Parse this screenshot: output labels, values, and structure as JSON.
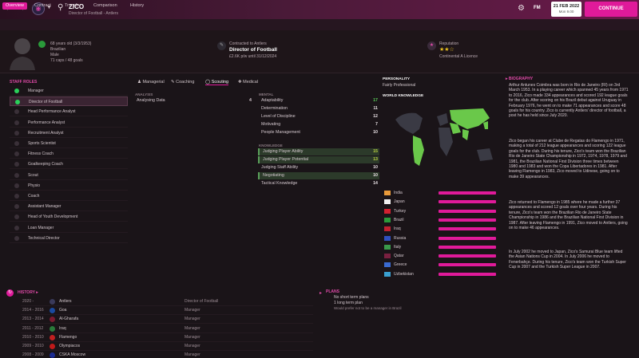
{
  "topbar": {
    "name": "ZICO",
    "subtitle": "Director of Football - Antlers",
    "fm": "FM",
    "date": "21 FEB 2022",
    "time": "Mon 9.00",
    "continue": "CONTINUE"
  },
  "subnav": [
    "Overview",
    "Contract",
    "Transfer",
    "Comparison",
    "History"
  ],
  "header": {
    "age": "68 years old (3/3/1953)",
    "nationality": "Brazilian",
    "gender": "Male",
    "caps": "71 caps / 48 goals",
    "contract_label": "Contracted to Antlers",
    "job": "Director of Football",
    "wage": "£2.6K p/w until 31/12/2024",
    "rep_label": "Reputation",
    "stars": "★★☆",
    "licence": "Continental A Licence"
  },
  "staff_roles": {
    "title": "STAFF ROLES",
    "items": [
      "Manager",
      "Director of Football",
      "Head Performance Analyst",
      "Performance Analyst",
      "Recruitment Analyst",
      "Sports Scientist",
      "Fitness Coach",
      "Goalkeeping Coach",
      "Scout",
      "Physio",
      "Coach",
      "Assistant Manager",
      "Head of Youth Development",
      "Loan Manager",
      "Technical Director"
    ]
  },
  "mid_tabs": [
    "Managerial",
    "Coaching",
    "Scouting",
    "Medical"
  ],
  "analysis": {
    "title": "ANALYSIS",
    "label": "Analysing Data",
    "value": "4"
  },
  "mental": {
    "title": "MENTAL",
    "items": [
      {
        "n": "Adaptability",
        "v": "17"
      },
      {
        "n": "Determination",
        "v": "11"
      },
      {
        "n": "Level of Discipline",
        "v": "12"
      },
      {
        "n": "Motivating",
        "v": "7"
      },
      {
        "n": "People Management",
        "v": "10"
      }
    ]
  },
  "knowledge": {
    "title": "KNOWLEDGE",
    "items": [
      {
        "n": "Judging Player Ability",
        "v": "15"
      },
      {
        "n": "Judging Player Potential",
        "v": "13"
      },
      {
        "n": "Judging Staff Ability",
        "v": "10"
      },
      {
        "n": "Negotiating",
        "v": "10"
      },
      {
        "n": "Tactical Knowledge",
        "v": "14"
      }
    ]
  },
  "personality": {
    "title": "PERSONALITY",
    "value": "Fairly Professional"
  },
  "world_knowledge": {
    "title": "WORLD KNOWLEDGE",
    "languages": [
      "India",
      "Japan",
      "Turkey",
      "Brazil",
      "Iraq",
      "Russia",
      "Italy",
      "Qatar",
      "Greece",
      "Uzbekistan"
    ]
  },
  "biography": {
    "title": "BIOGRAPHY",
    "p1": "Arthur Antunes Coimbra was born in Rio de Janeiro (RI) on 3rd March 1953. In a playing career which spanned 45 years from 1971 to 2016, Zico made 334 appearances and scored 192 league goals for the club. During his tenure, Zico's team won the Brazilian Rio de Janeiro State Championship in 1972, 1974, 1978, 1979 and 1981, the Brazilian National First Division three times between 1980 and 1983 and won the Copa Libertadores in 1981. After leaving Flamengo in 1983, Zico moved to Udinese, going on to make 39 appearances.",
    "pa": "Arthur Antunes Coimbra was born in Rio de Janeiro (RI) on 3rd March 1953. In a playing career which spanned 45 years from 1971 to 2016, Zico made 334 appearances and scored 192 league goals for the club. After scoring on his Brazil debut against Uruguay in February 1976, he went on to make 71 appearances and score 48 goals for his country. Zico is currently Antlers' director of football, a post he has held since July 2020.",
    "pb": "Zico began his career at Clube de Regatas do Flamengo in 1971, making a total of 212 league appearances and scoring 122 league goals for the club. During his tenure, Zico's team won the Brazilian Rio de Janeiro State Championship in 1972, 1974, 1978, 1979 and 1981, the Brazilian National First Division three times between 1980 and 1983 and won the Copa Libertadores in 1981. After leaving Flamengo in 1983, Zico moved to Udinese, going on to make 39 appearances.",
    "pc": "Zico returned to Flamengo in 1985 where he made a further 37 appearances and scored 12 goals over four years. During his tenure, Zico's team won the Brazilian Rio de Janeiro State Championship in 1986 and the Brazilian National First Division in 1987. After leaving Flamengo in 1991, Zico moved to Antlers, going on to make 46 appearances.",
    "pd": "In July 2002 he moved to Japan, Zico's Samurai Blue team lifted the Asian Nations Cup in 2004. In July 2006 he moved to Fenerbahçe. During his tenure, Zico's team won the Turkish Super Cup in 2007 and the Turkish Super League in 2007."
  },
  "history": {
    "title": "HISTORY",
    "rows": [
      {
        "yr": "2020 -",
        "club": "Antlers",
        "role": "Director of Football"
      },
      {
        "yr": "2014 - 2016",
        "club": "Goa",
        "role": "Manager"
      },
      {
        "yr": "2013 - 2014",
        "club": "Al-Gharafa",
        "role": "Manager"
      },
      {
        "yr": "2011 - 2012",
        "club": "Iraq",
        "role": "Manager"
      },
      {
        "yr": "2010 - 2010",
        "club": "Flamengo",
        "role": "Manager"
      },
      {
        "yr": "2009 - 2010",
        "club": "Olympiacos",
        "role": "Manager"
      },
      {
        "yr": "2008 - 2009",
        "club": "CSKA Moscow",
        "role": "Manager"
      }
    ]
  },
  "plans": {
    "title": "PLANS",
    "l1": "No short term plans",
    "l2": "1 long term plan",
    "l3": "Would prefer not to be a manager in Brazil"
  }
}
